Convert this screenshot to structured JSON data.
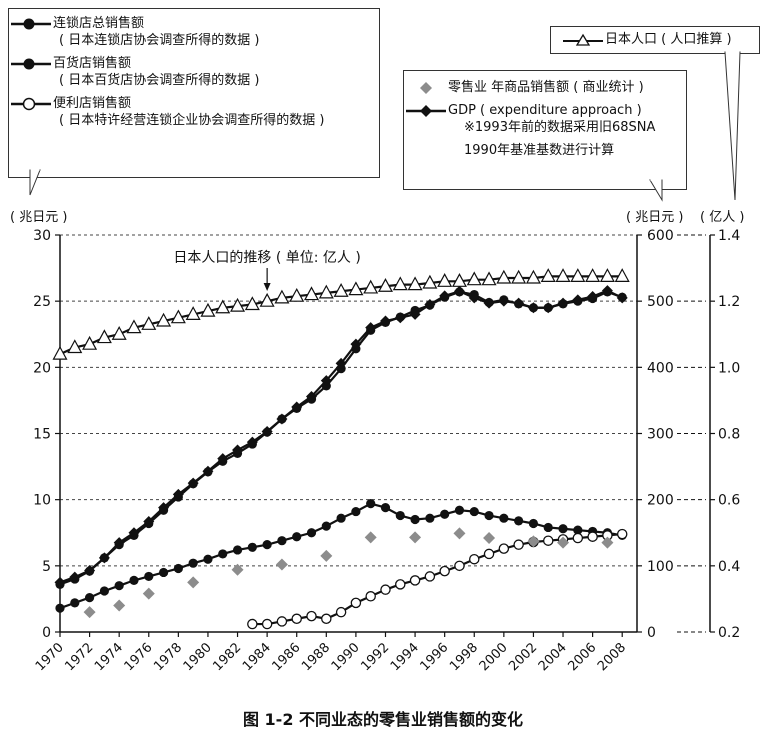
{
  "legend_left": {
    "items": [
      {
        "label": "连锁店总销售额",
        "source": "( 日本连锁店协会调查所得的数据 )"
      },
      {
        "label": "百货店销售额",
        "source": "( 日本百货店协会调查所得的数据 )"
      },
      {
        "label": "便利店销售额",
        "source": "( 日本特许经营连锁企业协会调查所得的数据 )"
      }
    ]
  },
  "legend_mid": {
    "retail_label": "零售业 年商品销售额 ( 商业统计 )",
    "gdp_label": "GDP ( expenditure approach )",
    "gdp_note1": "※1993年前的数据采用旧68SNA",
    "gdp_note2": "1990年基准基数进行计算"
  },
  "legend_right": {
    "label": "日本人口 ( 人口推算 )"
  },
  "units": {
    "left": "( 兆日元 )",
    "mid": "( 兆日元 )",
    "right": "( 亿人 )"
  },
  "annotation": "日本人口的推移 ( 单位: 亿人 )",
  "caption": "图 1-2   不同业态的零售业销售额的变化",
  "chart_data": {
    "type": "line",
    "x_ticks": [
      "1970",
      "1972",
      "1974",
      "1976",
      "1978",
      "1980",
      "1982",
      "1984",
      "1986",
      "1988",
      "1990",
      "1992",
      "1994",
      "1996",
      "1998",
      "2000",
      "2002",
      "2004",
      "2006",
      "2008"
    ],
    "axes": {
      "left": {
        "label": "( 兆日元 )",
        "ylim": [
          0,
          30
        ],
        "ticks": [
          0,
          5,
          10,
          15,
          20,
          25,
          30
        ]
      },
      "mid": {
        "label": "( 兆日元 )",
        "ylim": [
          0,
          600
        ],
        "ticks": [
          0,
          100,
          200,
          300,
          400,
          500,
          600
        ]
      },
      "right": {
        "label": "( 亿人 )",
        "ylim": [
          0.2,
          1.4
        ],
        "ticks": [
          0.2,
          0.4,
          0.6,
          0.8,
          1.0,
          1.2,
          1.4
        ]
      },
      "xlim": [
        1970,
        2009
      ]
    },
    "grid": "dashed horizontal",
    "series": [
      {
        "name": "连锁店总销售额",
        "axis": "left",
        "marker": "filled-circle",
        "color": "#111111",
        "x": [
          1970,
          1971,
          1972,
          1973,
          1974,
          1975,
          1976,
          1977,
          1978,
          1979,
          1980,
          1981,
          1982,
          1983,
          1984,
          1985,
          1986,
          1987,
          1988,
          1989,
          1990,
          1991,
          1992,
          1993,
          1994,
          1995,
          1996,
          1997,
          1998,
          1999,
          2000,
          2001,
          2002,
          2003,
          2004,
          2005,
          2006,
          2007,
          2008
        ],
        "y": [
          3.6,
          4.0,
          4.6,
          5.6,
          6.6,
          7.3,
          8.2,
          9.2,
          10.2,
          11.2,
          12.1,
          12.9,
          13.5,
          14.2,
          15.1,
          16.1,
          16.9,
          17.6,
          18.6,
          19.9,
          21.4,
          22.8,
          23.4,
          23.8,
          24.3,
          24.7,
          25.3,
          25.7,
          25.5,
          24.9,
          25.1,
          24.8,
          24.5,
          24.5,
          24.8,
          25.0,
          25.2,
          25.7,
          25.3
        ]
      },
      {
        "name": "百货店销售额",
        "axis": "left",
        "marker": "filled-circle",
        "color": "#111111",
        "x": [
          1970,
          1971,
          1972,
          1973,
          1974,
          1975,
          1976,
          1977,
          1978,
          1979,
          1980,
          1981,
          1982,
          1983,
          1984,
          1985,
          1986,
          1987,
          1988,
          1989,
          1990,
          1991,
          1992,
          1993,
          1994,
          1995,
          1996,
          1997,
          1998,
          1999,
          2000,
          2001,
          2002,
          2003,
          2004,
          2005,
          2006,
          2007,
          2008
        ],
        "y": [
          1.8,
          2.2,
          2.6,
          3.1,
          3.5,
          3.9,
          4.2,
          4.5,
          4.8,
          5.2,
          5.5,
          5.9,
          6.2,
          6.4,
          6.6,
          6.9,
          7.2,
          7.5,
          8.0,
          8.6,
          9.1,
          9.7,
          9.4,
          8.8,
          8.5,
          8.6,
          8.9,
          9.2,
          9.1,
          8.8,
          8.6,
          8.4,
          8.2,
          7.9,
          7.8,
          7.7,
          7.6,
          7.5,
          7.3
        ]
      },
      {
        "name": "便利店销售额",
        "axis": "left",
        "marker": "open-circle",
        "color": "#111111",
        "x": [
          1983,
          1984,
          1985,
          1986,
          1987,
          1988,
          1989,
          1990,
          1991,
          1992,
          1993,
          1994,
          1995,
          1996,
          1997,
          1998,
          1999,
          2000,
          2001,
          2002,
          2003,
          2004,
          2005,
          2006,
          2007,
          2008
        ],
        "y": [
          0.6,
          0.6,
          0.8,
          1.0,
          1.2,
          1.0,
          1.5,
          2.2,
          2.7,
          3.2,
          3.6,
          3.9,
          4.2,
          4.6,
          5.0,
          5.5,
          5.9,
          6.3,
          6.6,
          6.8,
          6.9,
          7.0,
          7.1,
          7.2,
          7.3,
          7.4
        ]
      },
      {
        "name": "零售业 年商品销售额 ( 商业统计 )",
        "axis": "mid",
        "marker": "diamond",
        "color": "#8c8c8c",
        "x": [
          1972,
          1974,
          1976,
          1979,
          1982,
          1985,
          1988,
          1991,
          1994,
          1997,
          1999,
          2002,
          2004,
          2007
        ],
        "y": [
          30,
          40,
          58,
          75,
          94,
          102,
          115,
          143,
          143,
          149,
          142,
          137,
          135,
          135
        ]
      },
      {
        "name": "GDP ( expenditure approach )",
        "axis": "mid",
        "marker": "filled-diamond",
        "color": "#111111",
        "x": [
          1970,
          1971,
          1972,
          1973,
          1974,
          1975,
          1976,
          1977,
          1978,
          1979,
          1980,
          1981,
          1982,
          1983,
          1984,
          1985,
          1986,
          1987,
          1988,
          1989,
          1990,
          1991,
          1992,
          1993,
          1994,
          1995,
          1996,
          1997,
          1998,
          1999,
          2000,
          2001,
          2002,
          2003,
          2004,
          2005,
          2006,
          2007,
          2008
        ],
        "y": [
          75,
          83,
          93,
          112,
          135,
          150,
          167,
          188,
          208,
          225,
          243,
          262,
          275,
          287,
          303,
          322,
          340,
          356,
          380,
          406,
          435,
          460,
          470,
          475,
          480,
          495,
          508,
          515,
          505,
          497,
          500,
          497,
          490,
          490,
          497,
          502,
          507,
          516,
          505
        ]
      },
      {
        "name": "日本人口 ( 人口推算 )",
        "axis": "right",
        "marker": "open-triangle",
        "color": "#111111",
        "x": [
          1970,
          1971,
          1972,
          1973,
          1974,
          1975,
          1976,
          1977,
          1978,
          1979,
          1980,
          1981,
          1982,
          1983,
          1984,
          1985,
          1986,
          1987,
          1988,
          1989,
          1990,
          1991,
          1992,
          1993,
          1994,
          1995,
          1996,
          1997,
          1998,
          1999,
          2000,
          2001,
          2002,
          2003,
          2004,
          2005,
          2006,
          2007,
          2008
        ],
        "y": [
          1.04,
          1.06,
          1.07,
          1.09,
          1.1,
          1.12,
          1.13,
          1.14,
          1.15,
          1.16,
          1.17,
          1.18,
          1.185,
          1.19,
          1.2,
          1.21,
          1.215,
          1.22,
          1.225,
          1.23,
          1.235,
          1.24,
          1.245,
          1.25,
          1.25,
          1.255,
          1.26,
          1.26,
          1.265,
          1.265,
          1.27,
          1.27,
          1.27,
          1.275,
          1.275,
          1.275,
          1.275,
          1.275,
          1.275
        ]
      }
    ]
  }
}
